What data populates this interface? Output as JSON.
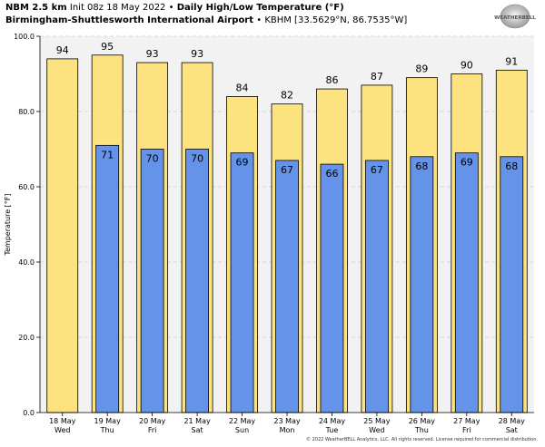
{
  "header": {
    "model": "NBM 2.5 km",
    "init": "Init 08z 18 May 2022",
    "bullet1": "•",
    "title": "Daily High/Low Temperature (°F)",
    "location": "Birmingham-Shuttlesworth International Airport",
    "bullet2": "•",
    "station": "KBHM [33.5629°N, 86.7535°W]"
  },
  "logo": {
    "text": "WEATHERBELL"
  },
  "footer": {
    "copyright": "© 2022 WeatherBELL Analytics, LLC. All rights reserved. License required for commercial distribution."
  },
  "colors": {
    "high": "#fde380",
    "low": "#6693ea",
    "plot_bg": "#f2f2f2",
    "grid": "#cccccc"
  },
  "chart_data": {
    "type": "bar",
    "ylabel": "Temperature [°F]",
    "ylim": [
      0,
      100
    ],
    "yticks": [
      "0.0",
      "20.0",
      "40.0",
      "60.0",
      "80.0",
      "100.0"
    ],
    "grid": true,
    "categories": [
      {
        "date": "18 May",
        "day": "Wed"
      },
      {
        "date": "19 May",
        "day": "Thu"
      },
      {
        "date": "20 May",
        "day": "Fri"
      },
      {
        "date": "21 May",
        "day": "Sat"
      },
      {
        "date": "22 May",
        "day": "Sun"
      },
      {
        "date": "23 May",
        "day": "Mon"
      },
      {
        "date": "24 May",
        "day": "Tue"
      },
      {
        "date": "25 May",
        "day": "Wed"
      },
      {
        "date": "26 May",
        "day": "Thu"
      },
      {
        "date": "27 May",
        "day": "Fri"
      },
      {
        "date": "28 May",
        "day": "Sat"
      }
    ],
    "series": [
      {
        "values": [
          94,
          95,
          93,
          93,
          84,
          82,
          86,
          87,
          89,
          90,
          91
        ],
        "labels": [
          "94",
          "95",
          "93",
          "93",
          "84",
          "82",
          "86",
          "87",
          "89",
          "90",
          "91"
        ]
      },
      {
        "values": [
          null,
          71,
          70,
          70,
          69,
          67,
          66,
          67,
          68,
          69,
          68
        ],
        "labels": [
          null,
          "71",
          "70",
          "70",
          "69",
          "67",
          "66",
          "67",
          "68",
          "69",
          "68"
        ]
      }
    ]
  }
}
